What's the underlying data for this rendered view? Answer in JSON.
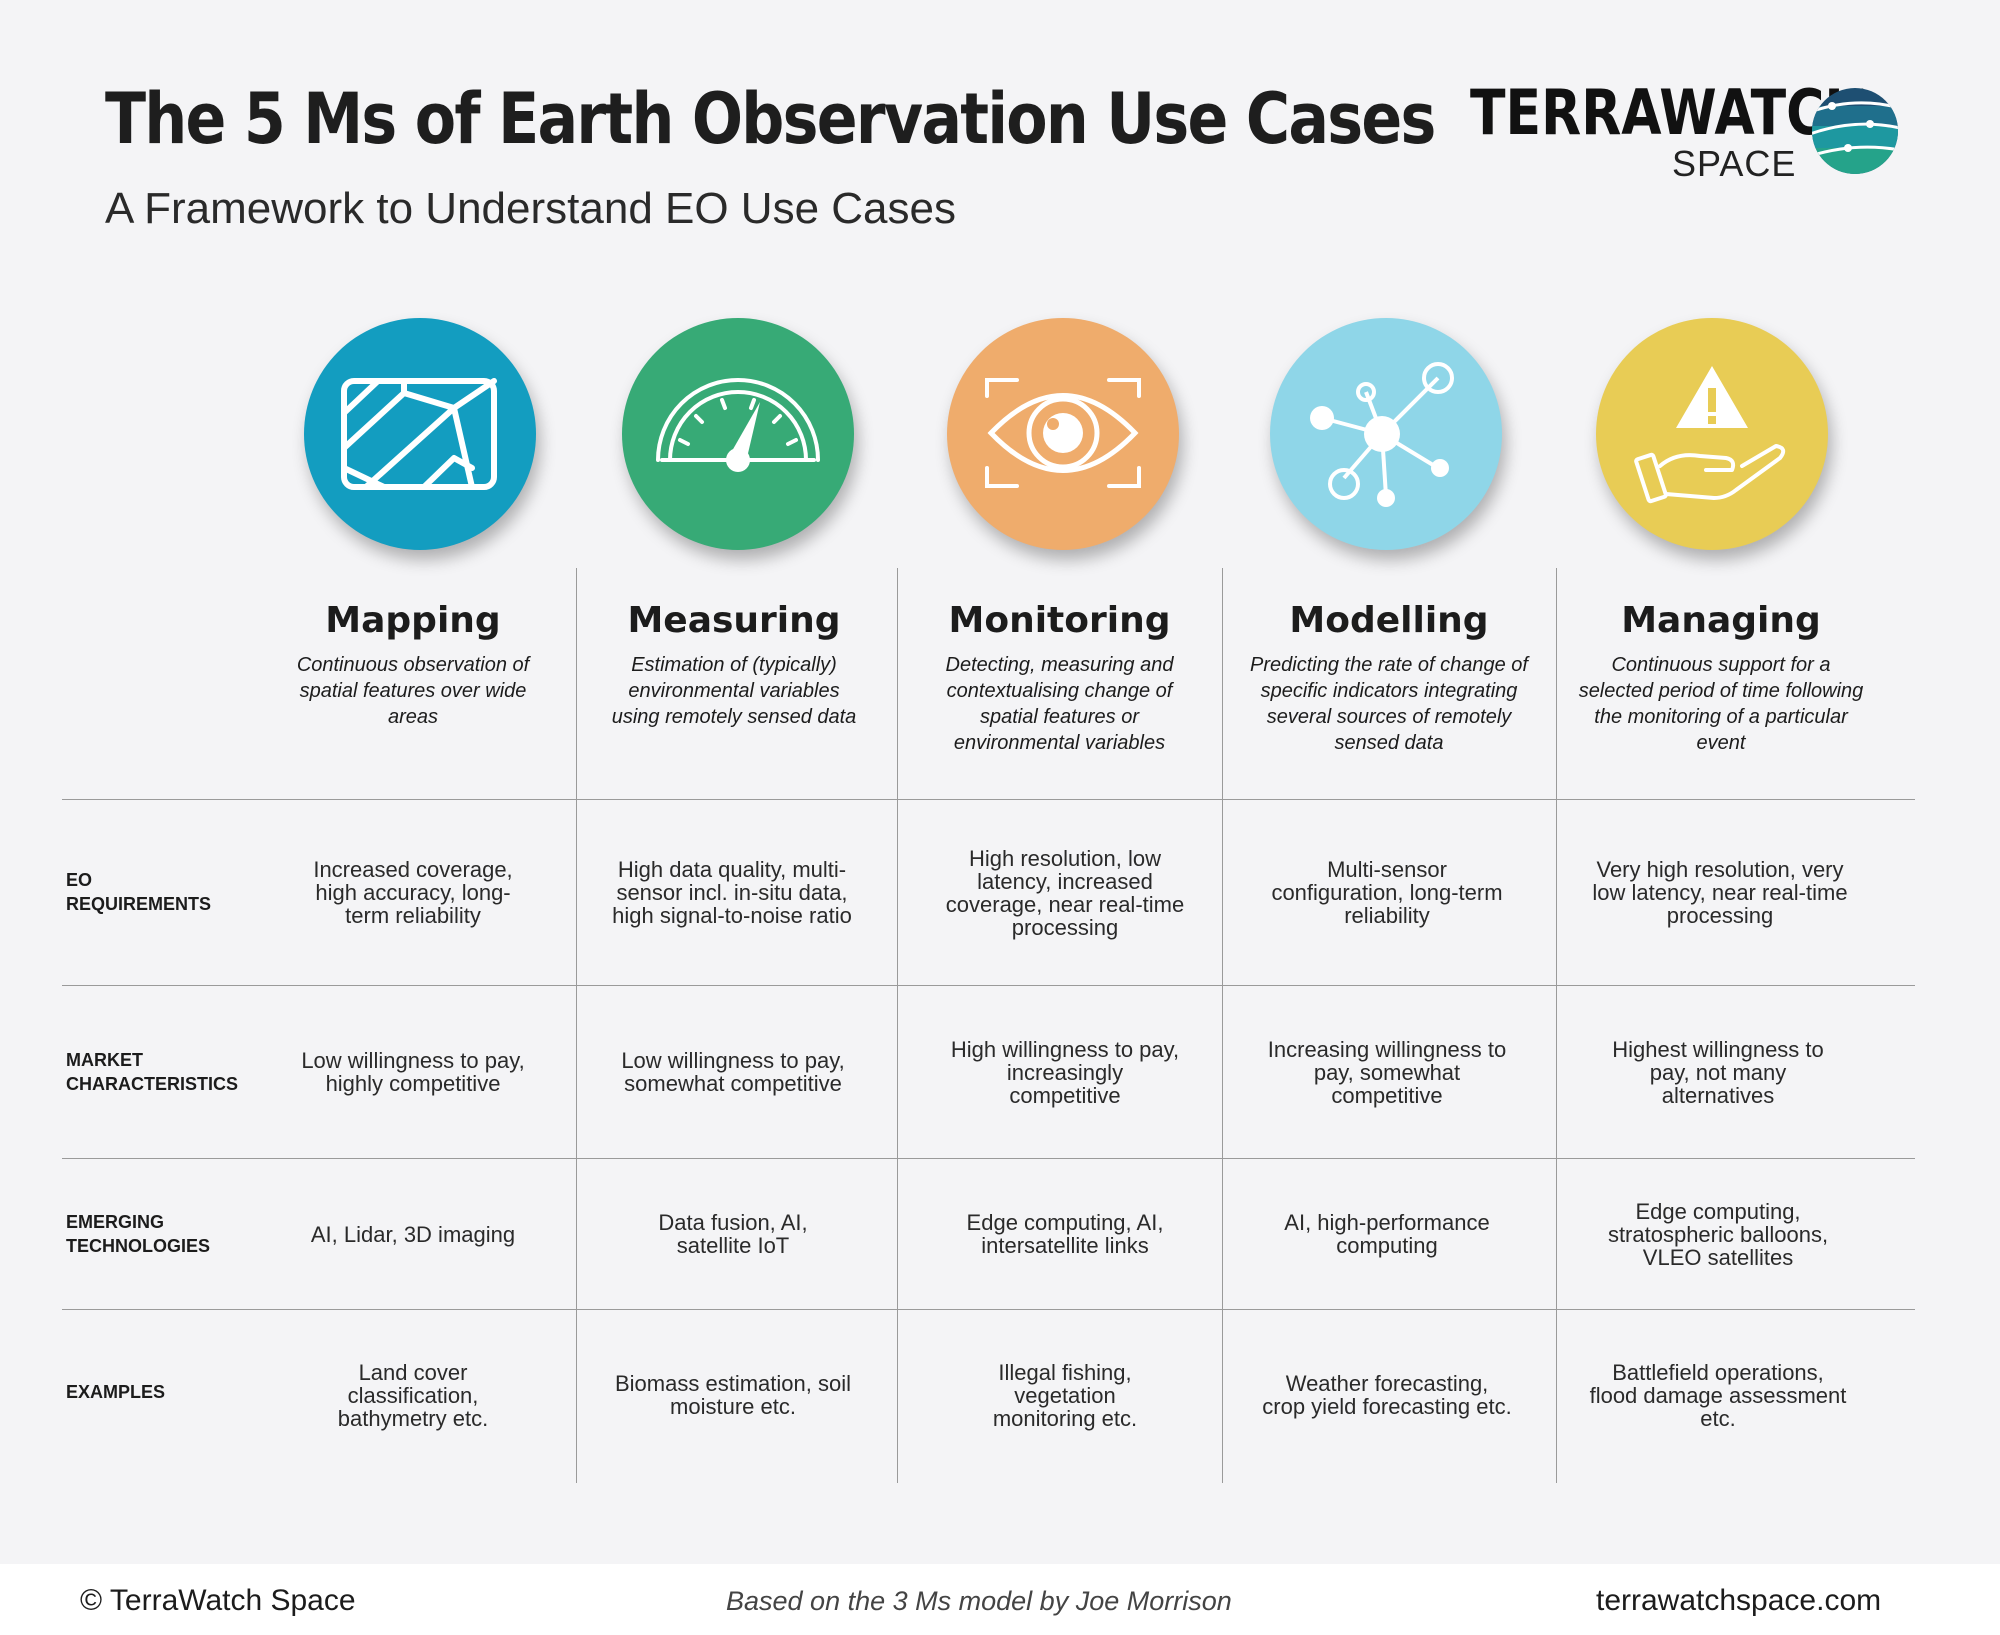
{
  "header": {
    "title": "The 5 Ms of Earth Observation Use Cases",
    "subtitle": "A Framework to Understand EO Use Cases",
    "logo_word": "TERRAWATCH",
    "logo_space": "SPACE"
  },
  "columns": [
    {
      "title": "Mapping",
      "desc": "Continuous observation of spatial features over wide areas",
      "color": "#139dc0",
      "icon": "map-icon"
    },
    {
      "title": "Measuring",
      "desc": "Estimation of (typically) environmental variables using remotely sensed data",
      "color": "#37aa76",
      "icon": "gauge-icon"
    },
    {
      "title": "Monitoring",
      "desc": "Detecting, measuring and contextualising change of spatial features or environmental variables",
      "color": "#efac6c",
      "icon": "eye-icon"
    },
    {
      "title": "Modelling",
      "desc": "Predicting the rate of change of specific indicators integrating several sources of remotely sensed data",
      "color": "#8fd6e8",
      "icon": "network-icon"
    },
    {
      "title": "Managing",
      "desc": "Continuous support for a selected period of time following the monitoring of a particular event",
      "color": "#e8cc55",
      "icon": "warning-hand-icon"
    }
  ],
  "rows": [
    {
      "label": "EO REQUIREMENTS",
      "cells": [
        "Increased coverage, high accuracy, long-term reliability",
        "High data quality, multi-sensor incl. in-situ data, high signal-to-noise ratio",
        "High resolution, low latency, increased coverage, near real-time processing",
        "Multi-sensor configuration, long-term reliability",
        "Very high resolution, very low latency, near real-time processing"
      ]
    },
    {
      "label": "MARKET CHARACTERISTICS",
      "cells": [
        "Low willingness to pay, highly competitive",
        "Low willingness to pay, somewhat competitive",
        "High willingness to pay, increasingly competitive",
        "Increasing willingness to pay, somewhat competitive",
        "Highest willingness to pay, not many alternatives"
      ]
    },
    {
      "label": "EMERGING TECHNOLOGIES",
      "cells": [
        "AI, Lidar, 3D imaging",
        "Data fusion, AI, satellite IoT",
        "Edge computing, AI, intersatellite links",
        "AI, high-performance computing",
        "Edge computing, stratospheric balloons, VLEO satellites"
      ]
    },
    {
      "label": "EXAMPLES",
      "cells": [
        "Land cover classification, bathymetry etc.",
        "Biomass estimation, soil moisture etc.",
        "Illegal fishing, vegetation monitoring etc.",
        "Weather forecasting, crop yield forecasting etc.",
        "Battlefield operations, flood damage assessment etc."
      ]
    }
  ],
  "footer": {
    "copyright": "© TerraWatch Space",
    "credit": "Based on the 3 Ms model by Joe Morrison",
    "website": "terrawatchspace.com"
  }
}
